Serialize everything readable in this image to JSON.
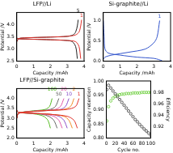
{
  "chart_data": [
    {
      "type": "line",
      "title": "LFP//Li",
      "x_label": "Capacity /mAh",
      "y_label": "Potential /V",
      "xlim": [
        0,
        4
      ],
      "xticks": [
        0,
        1,
        2,
        3,
        4
      ],
      "ylim": [
        2.5,
        4.5
      ],
      "yticks": [
        2.5,
        {
          "value": 3,
          "label": "3.0"
        },
        3.5,
        {
          "value": 4,
          "label": "4.0"
        }
      ],
      "grid": false,
      "series": [
        {
          "name": "1",
          "color": "#e0302a",
          "line_style": "solid",
          "marker": "none",
          "x": [
            0,
            0.1,
            0.5,
            1,
            2,
            3,
            3.5,
            3.7,
            3.8,
            null,
            0,
            0.1,
            0.3,
            1,
            2,
            3,
            3.5,
            3.7,
            3.8,
            3.85
          ],
          "values": [
            3.45,
            3.42,
            3.41,
            3.4,
            3.38,
            3.35,
            3.3,
            3.1,
            2.6,
            null,
            3.3,
            3.42,
            3.45,
            3.47,
            3.49,
            3.52,
            3.58,
            3.7,
            3.95,
            4.2
          ]
        },
        {
          "name": "5",
          "color": "#222222",
          "line_style": "solid",
          "marker": "none",
          "x": [
            0,
            0.1,
            0.5,
            1,
            2,
            3,
            3.3,
            3.5,
            3.6,
            null,
            0,
            0.1,
            0.3,
            1,
            2,
            3,
            3.35,
            3.5,
            3.6,
            3.65
          ],
          "values": [
            3.45,
            3.42,
            3.41,
            3.4,
            3.38,
            3.35,
            3.3,
            3.1,
            2.6,
            null,
            3.3,
            3.42,
            3.45,
            3.47,
            3.49,
            3.52,
            3.58,
            3.7,
            3.95,
            4.2
          ]
        }
      ]
    },
    {
      "type": "line",
      "title": "Si-graphite//Li",
      "x_label": "Capacity /mAh",
      "y_label": "Potential /V",
      "xlim": [
        0,
        4
      ],
      "xticks": [
        0,
        1,
        2,
        3,
        4
      ],
      "ylim": [
        0,
        1.2
      ],
      "yticks": [
        {
          "value": 0,
          "label": "0.0"
        },
        0.5,
        {
          "value": 1,
          "label": "1.0"
        }
      ],
      "grid": false,
      "series": [
        {
          "name": "1",
          "color": "#3355cc",
          "line_style": "solid",
          "marker": "none",
          "x": [
            0,
            0.05,
            0.1,
            0.3,
            1,
            2,
            3,
            3.3,
            3.5,
            null,
            0,
            0.1,
            0.5,
            1.5,
            2.5,
            3,
            3.2,
            3.35
          ],
          "values": [
            1.0,
            0.6,
            0.3,
            0.2,
            0.15,
            0.1,
            0.07,
            0.04,
            0.01,
            null,
            0.05,
            0.1,
            0.15,
            0.22,
            0.3,
            0.45,
            0.6,
            1.0
          ]
        }
      ]
    },
    {
      "type": "line",
      "title": "LFP//Si-graphite",
      "x_label": "Capacity /mAh",
      "y_label": "Potential /V",
      "xlim": [
        0,
        4
      ],
      "xticks": [
        0,
        1,
        2,
        3,
        4
      ],
      "ylim": [
        2,
        4.5
      ],
      "yticks": [
        {
          "value": 2,
          "label": "2.0"
        },
        2.5,
        {
          "value": 3,
          "label": "3.0"
        },
        3.5,
        {
          "value": 4,
          "label": "4.0"
        }
      ],
      "grid": false,
      "series": [
        {
          "name": "1",
          "color": "#e0302a",
          "line_style": "solid",
          "marker": "none",
          "x": [
            0,
            0.1,
            1,
            2,
            3,
            3.4,
            3.6,
            null,
            0,
            0.1,
            1,
            2,
            3,
            3.5,
            3.7
          ],
          "values": [
            3.4,
            3.3,
            3.25,
            3.2,
            3.1,
            2.9,
            2.5,
            null,
            3.0,
            3.25,
            3.35,
            3.4,
            3.45,
            3.6,
            4.0
          ]
        },
        {
          "name": "2",
          "color": "#f08a24",
          "line_style": "solid",
          "marker": "none",
          "x": [
            0,
            0.1,
            1,
            2,
            2.8,
            3.1,
            3.3,
            null,
            0,
            0.1,
            1,
            2,
            2.8,
            3.2,
            3.4
          ],
          "values": [
            3.4,
            3.3,
            3.25,
            3.2,
            3.1,
            2.9,
            2.5,
            null,
            3.0,
            3.25,
            3.35,
            3.4,
            3.45,
            3.6,
            4.0
          ]
        },
        {
          "name": "10",
          "color": "#8a4fc8",
          "line_style": "solid",
          "marker": "none",
          "x": [
            0,
            0.1,
            1,
            2,
            2.5,
            2.8,
            3.0,
            null,
            0,
            0.1,
            1,
            2,
            2.6,
            2.9,
            3.1
          ],
          "values": [
            3.4,
            3.3,
            3.25,
            3.2,
            3.1,
            2.9,
            2.5,
            null,
            3.0,
            3.25,
            3.35,
            3.4,
            3.45,
            3.6,
            4.0
          ]
        },
        {
          "name": "20",
          "color": "#e05aa8",
          "line_style": "solid",
          "marker": "none",
          "x": [
            0,
            0.1,
            1,
            1.7,
            2.2,
            2.5,
            2.7,
            null,
            0,
            0.1,
            1,
            1.8,
            2.3,
            2.6,
            2.8
          ],
          "values": [
            3.4,
            3.3,
            3.25,
            3.2,
            3.1,
            2.9,
            2.5,
            null,
            3.0,
            3.25,
            3.35,
            3.4,
            3.45,
            3.6,
            4.0
          ]
        },
        {
          "name": "50",
          "color": "#666666",
          "line_style": "solid",
          "marker": "none",
          "x": [
            0,
            0.1,
            0.8,
            1.5,
            1.9,
            2.2,
            2.4,
            null,
            0,
            0.1,
            0.8,
            1.6,
            2.0,
            2.3,
            2.5
          ],
          "values": [
            3.4,
            3.3,
            3.25,
            3.2,
            3.1,
            2.9,
            2.5,
            null,
            3.0,
            3.25,
            3.35,
            3.4,
            3.45,
            3.6,
            4.0
          ]
        },
        {
          "name": "100",
          "color": "#55bb22",
          "line_style": "solid",
          "marker": "none",
          "x": [
            0,
            0.1,
            0.7,
            1.2,
            1.6,
            1.85,
            2.0,
            null,
            0,
            0.1,
            0.7,
            1.3,
            1.7,
            1.95,
            2.1
          ],
          "values": [
            3.4,
            3.3,
            3.25,
            3.2,
            3.1,
            2.9,
            2.5,
            null,
            3.0,
            3.25,
            3.35,
            3.4,
            3.45,
            3.6,
            4.0
          ]
        }
      ]
    },
    {
      "type": "scatter",
      "x_label": "Cycle no.",
      "y_label": "Capacity retention",
      "y2_label": "Efficiency",
      "xlim": [
        0,
        100
      ],
      "xticks": [
        0,
        20,
        40,
        60,
        80,
        100
      ],
      "ylim": [
        0.8,
        1.0
      ],
      "yticks": [
        {
          "value": 0.8,
          "label": "0.80"
        },
        0.85,
        {
          "value": 0.9,
          "label": "0.90"
        },
        0.95,
        {
          "value": 1.0,
          "label": "1.00"
        }
      ],
      "y2lim": [
        0.9,
        1.0
      ],
      "y2ticks": [
        0.92,
        0.94,
        0.96,
        0.98
      ],
      "grid": false,
      "x": [
        1,
        5,
        10,
        15,
        20,
        25,
        30,
        35,
        40,
        45,
        50,
        55,
        60,
        65,
        70,
        75,
        80,
        85,
        90,
        95,
        100
      ],
      "series": [
        {
          "color": "#333333",
          "marker": "open_circle",
          "line_style": "none",
          "values": [
            0.97,
            0.985,
            0.975,
            0.965,
            0.955,
            0.945,
            0.935,
            0.925,
            0.915,
            0.905,
            0.895,
            0.885,
            0.875,
            0.865,
            0.857,
            0.848,
            0.84,
            0.832,
            0.825,
            0.818,
            0.81
          ]
        },
        {
          "color": "#66cc33",
          "marker": "open_circle",
          "line_style": "none",
          "axis": "y2",
          "values": [
            0.93,
            0.955,
            0.965,
            0.97,
            0.973,
            0.975,
            0.976,
            0.977,
            0.977,
            0.978,
            0.978,
            0.978,
            0.979,
            0.979,
            0.979,
            0.979,
            0.98,
            0.98,
            0.98,
            0.98,
            0.98
          ]
        }
      ]
    }
  ]
}
